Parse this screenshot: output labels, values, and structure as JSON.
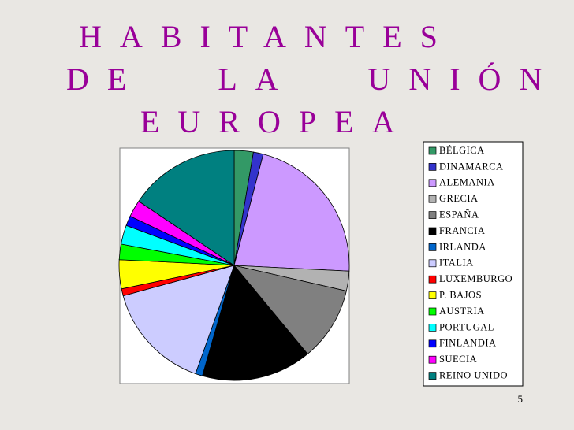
{
  "chart_data": {
    "type": "pie",
    "title": [
      "HABITANTES",
      "DE LA UNIÓN",
      "EUROPEA"
    ],
    "categories": [
      "BÉLGICA",
      "DINAMARCA",
      "ALEMANIA",
      "GRECIA",
      "ESPAÑA",
      "FRANCIA",
      "IRLANDA",
      "ITALIA",
      "LUXEMBURGO",
      "P. BAJOS",
      "AUSTRIA",
      "PORTUGAL",
      "FINLANDIA",
      "SUECIA",
      "REINO UNIDO"
    ],
    "values": [
      2.7,
      1.4,
      21.9,
      2.8,
      10.5,
      15.6,
      1,
      15.4,
      1,
      4.1,
      2.2,
      2.7,
      1.4,
      2.4,
      15.7
    ],
    "colors": [
      "#339966",
      "#3333cc",
      "#cc99ff",
      "#b2b2b2",
      "#808080",
      "#000000",
      "#0066cc",
      "#ccccff",
      "#ff0000",
      "#ffff00",
      "#00ff00",
      "#00ffff",
      "#0000ff",
      "#ff00ff",
      "#008080"
    ],
    "page_number": "5"
  }
}
